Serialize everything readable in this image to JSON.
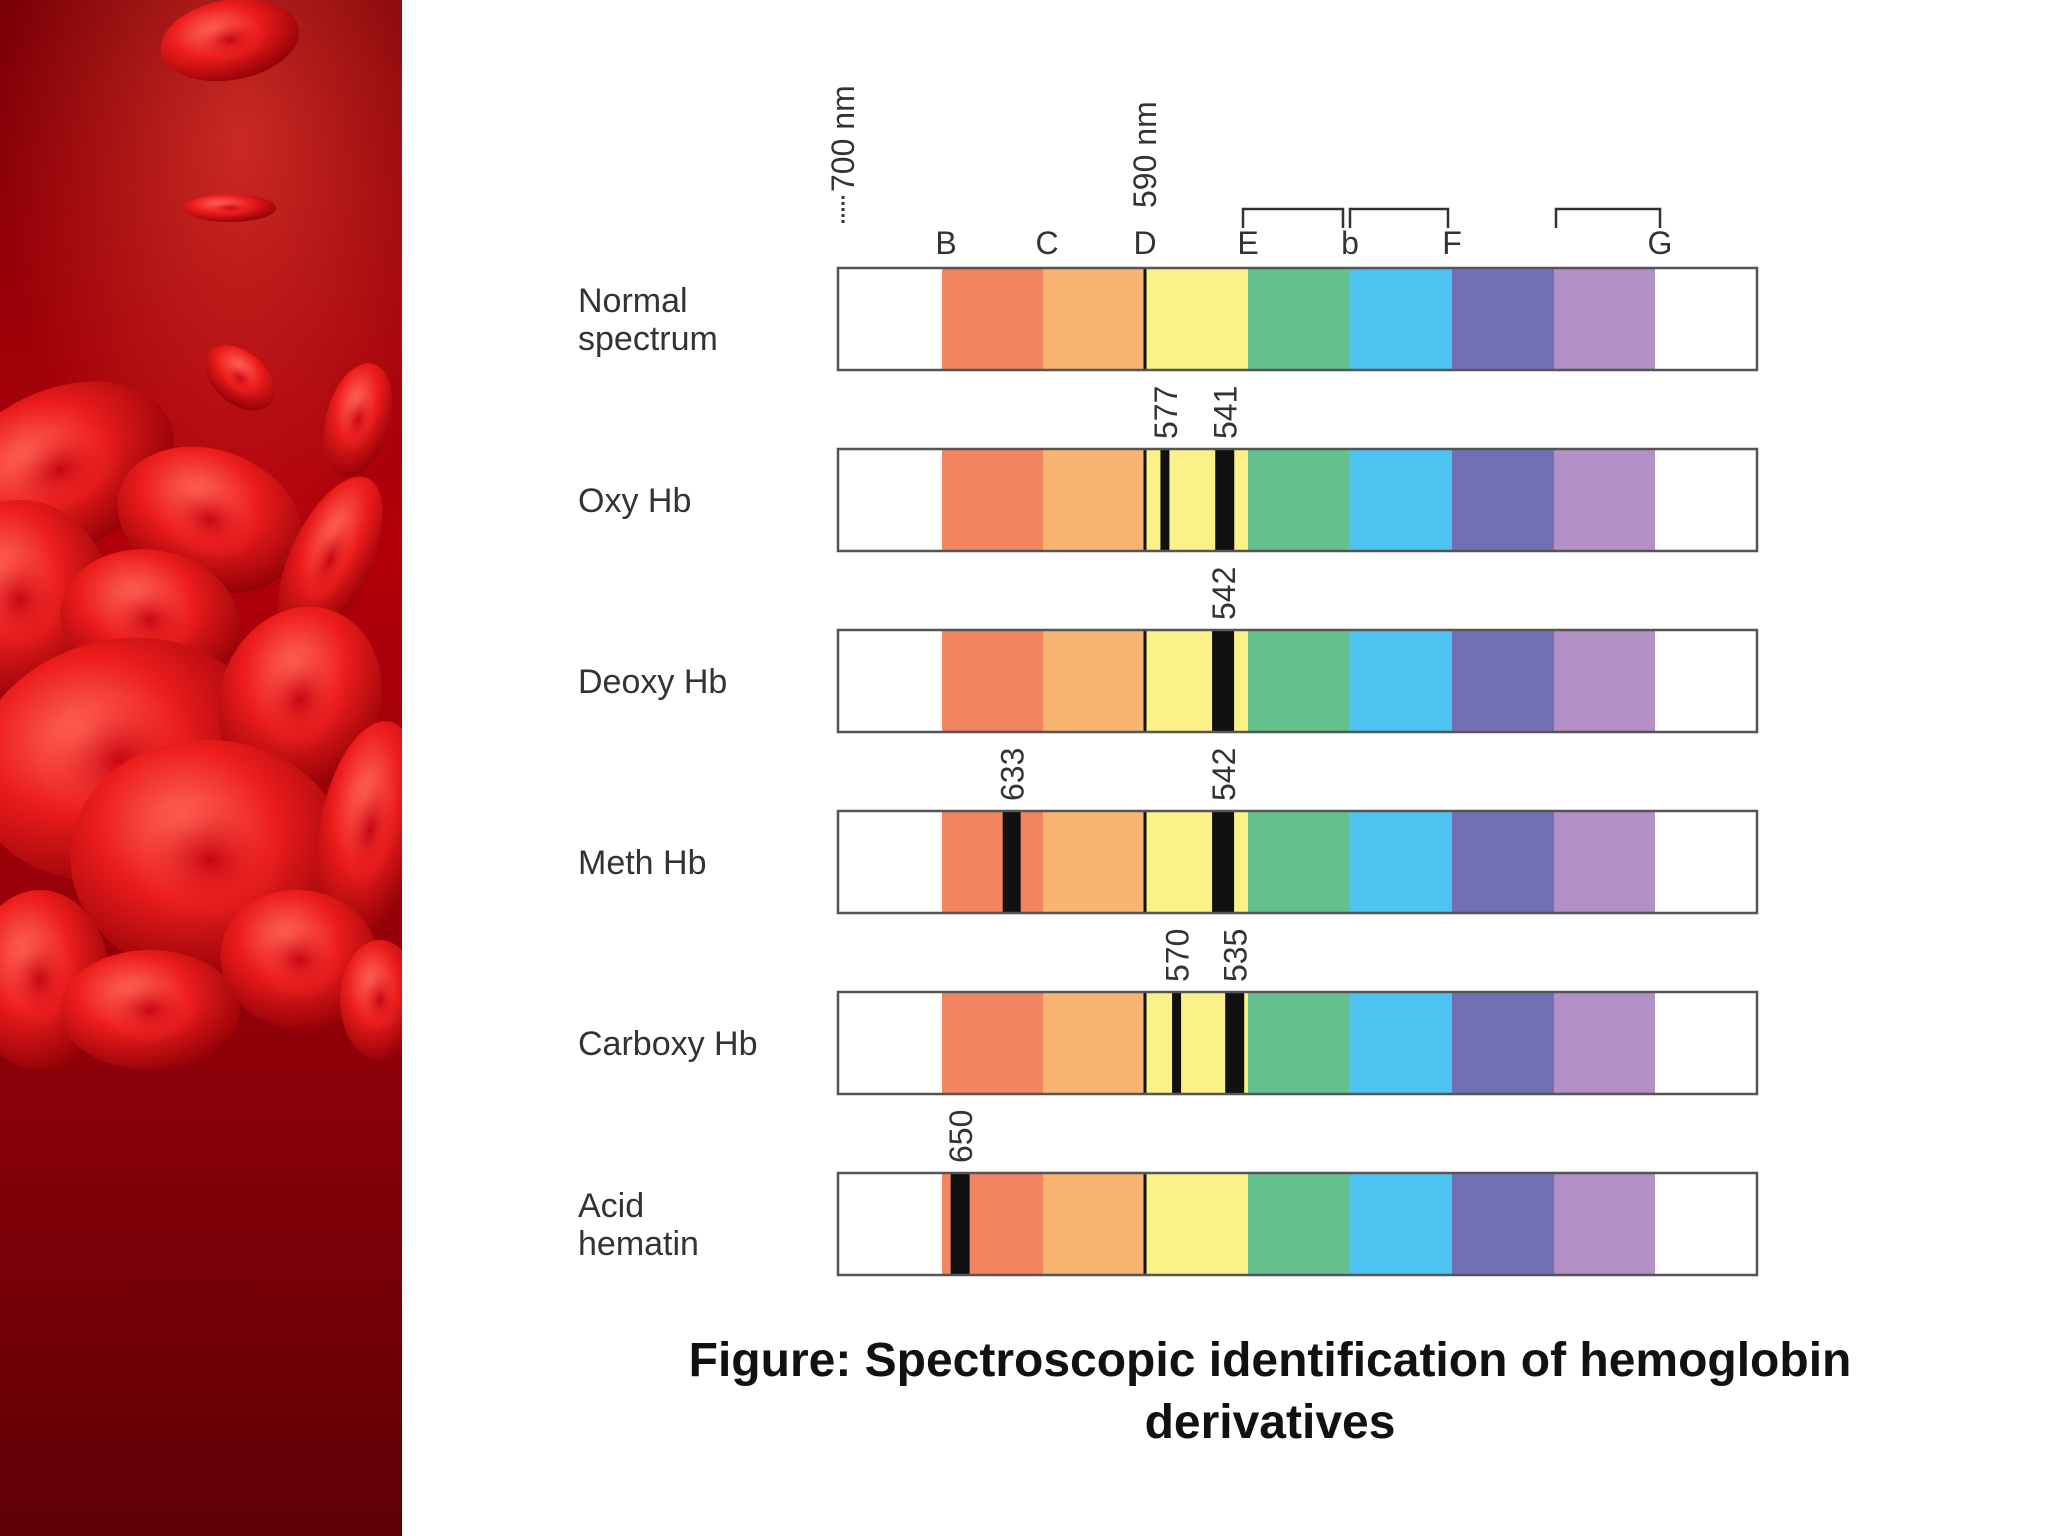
{
  "colors": {
    "red": "#F2845F",
    "orange": "#F8B572",
    "yellow": "#FAF189",
    "green": "#64C18D",
    "blue": "#4CC3F0",
    "indigo": "#7170B5",
    "violet": "#B28FC5",
    "band": "#111111",
    "frame": "#555555",
    "background_red": "#C4000B"
  },
  "scale_labels": [
    "700 nm",
    "590 nm"
  ],
  "fraunhofer_lines": [
    "B",
    "C",
    "D",
    "E",
    "b",
    "F",
    "G"
  ],
  "rows": [
    {
      "label_lines": [
        "Normal",
        "spectrum"
      ],
      "bands": []
    },
    {
      "label_lines": [
        "Oxy Hb"
      ],
      "bands": [
        {
          "nm": "577"
        },
        {
          "nm": "541"
        }
      ]
    },
    {
      "label_lines": [
        "Deoxy Hb"
      ],
      "bands": [
        {
          "nm": "542"
        }
      ]
    },
    {
      "label_lines": [
        "Meth Hb"
      ],
      "bands": [
        {
          "nm": "633"
        },
        {
          "nm": "542"
        }
      ]
    },
    {
      "label_lines": [
        "Carboxy Hb"
      ],
      "bands": [
        {
          "nm": "570"
        },
        {
          "nm": "535"
        }
      ]
    },
    {
      "label_lines": [
        "Acid",
        "hematin"
      ],
      "bands": [
        {
          "nm": "650"
        }
      ]
    }
  ],
  "caption": "Figure: Spectroscopic identification of hemoglobin derivatives"
}
